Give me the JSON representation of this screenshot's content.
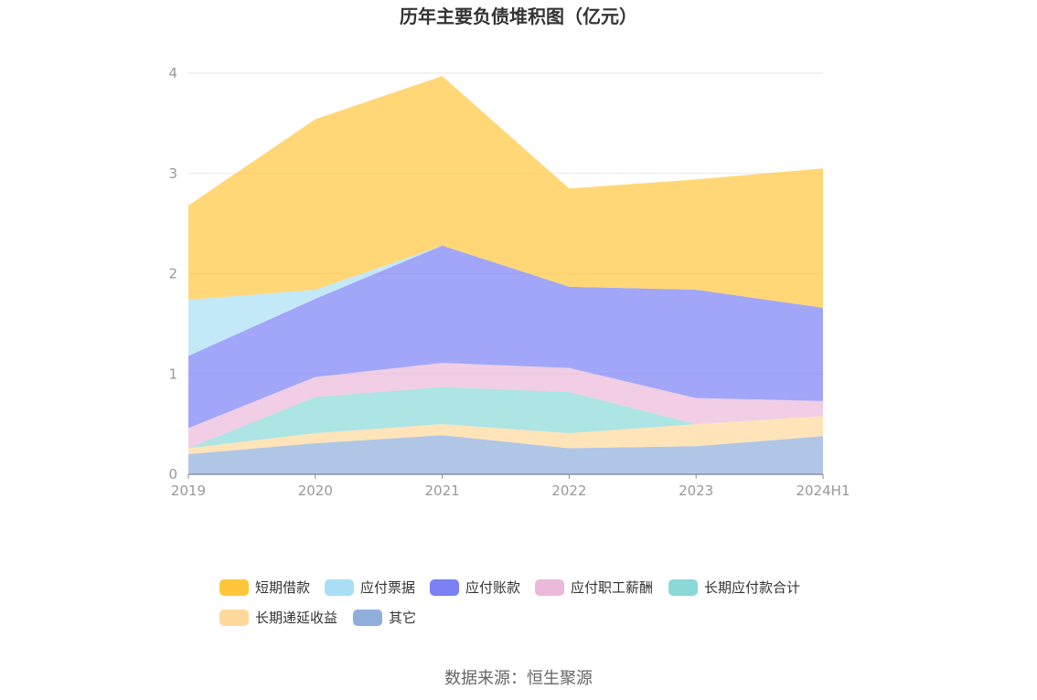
{
  "chart_data": {
    "type": "area",
    "stacked": true,
    "title": "历年主要负债堆积图（亿元）",
    "categories": [
      "2019",
      "2020",
      "2021",
      "2022",
      "2023",
      "2024H1"
    ],
    "ylim": [
      0,
      4
    ],
    "yticks": [
      "0",
      "1",
      "2",
      "3",
      "4"
    ],
    "grid": true,
    "legend_position": "bottom",
    "series": [
      {
        "name": "其它",
        "color": "#8eaedb",
        "values": [
          0.2,
          0.31,
          0.39,
          0.26,
          0.28,
          0.38
        ]
      },
      {
        "name": "长期递延收益",
        "color": "#ffd99b",
        "values": [
          0.06,
          0.1,
          0.11,
          0.15,
          0.22,
          0.2
        ]
      },
      {
        "name": "长期应付款合计",
        "color": "#8ad8d8",
        "values": [
          0.0,
          0.36,
          0.37,
          0.41,
          0.0,
          0.0
        ]
      },
      {
        "name": "应付职工薪酬",
        "color": "#ebb9da",
        "values": [
          0.2,
          0.2,
          0.24,
          0.24,
          0.26,
          0.15
        ]
      },
      {
        "name": "应付账款",
        "color": "#7b80f5",
        "values": [
          0.72,
          0.78,
          1.17,
          0.81,
          1.08,
          0.93
        ]
      },
      {
        "name": "应付票据",
        "color": "#a9dff5",
        "values": [
          0.56,
          0.09,
          0.0,
          0.0,
          0.0,
          0.0
        ]
      },
      {
        "name": "短期借款",
        "color": "#ffc63d",
        "values": [
          0.94,
          1.7,
          1.69,
          0.98,
          1.1,
          1.39
        ]
      }
    ],
    "legend_order": [
      "短期借款",
      "应付票据",
      "应付账款",
      "应付职工薪酬",
      "长期应付款合计",
      "长期递延收益",
      "其它"
    ]
  },
  "source_text": "数据来源：恒生聚源"
}
